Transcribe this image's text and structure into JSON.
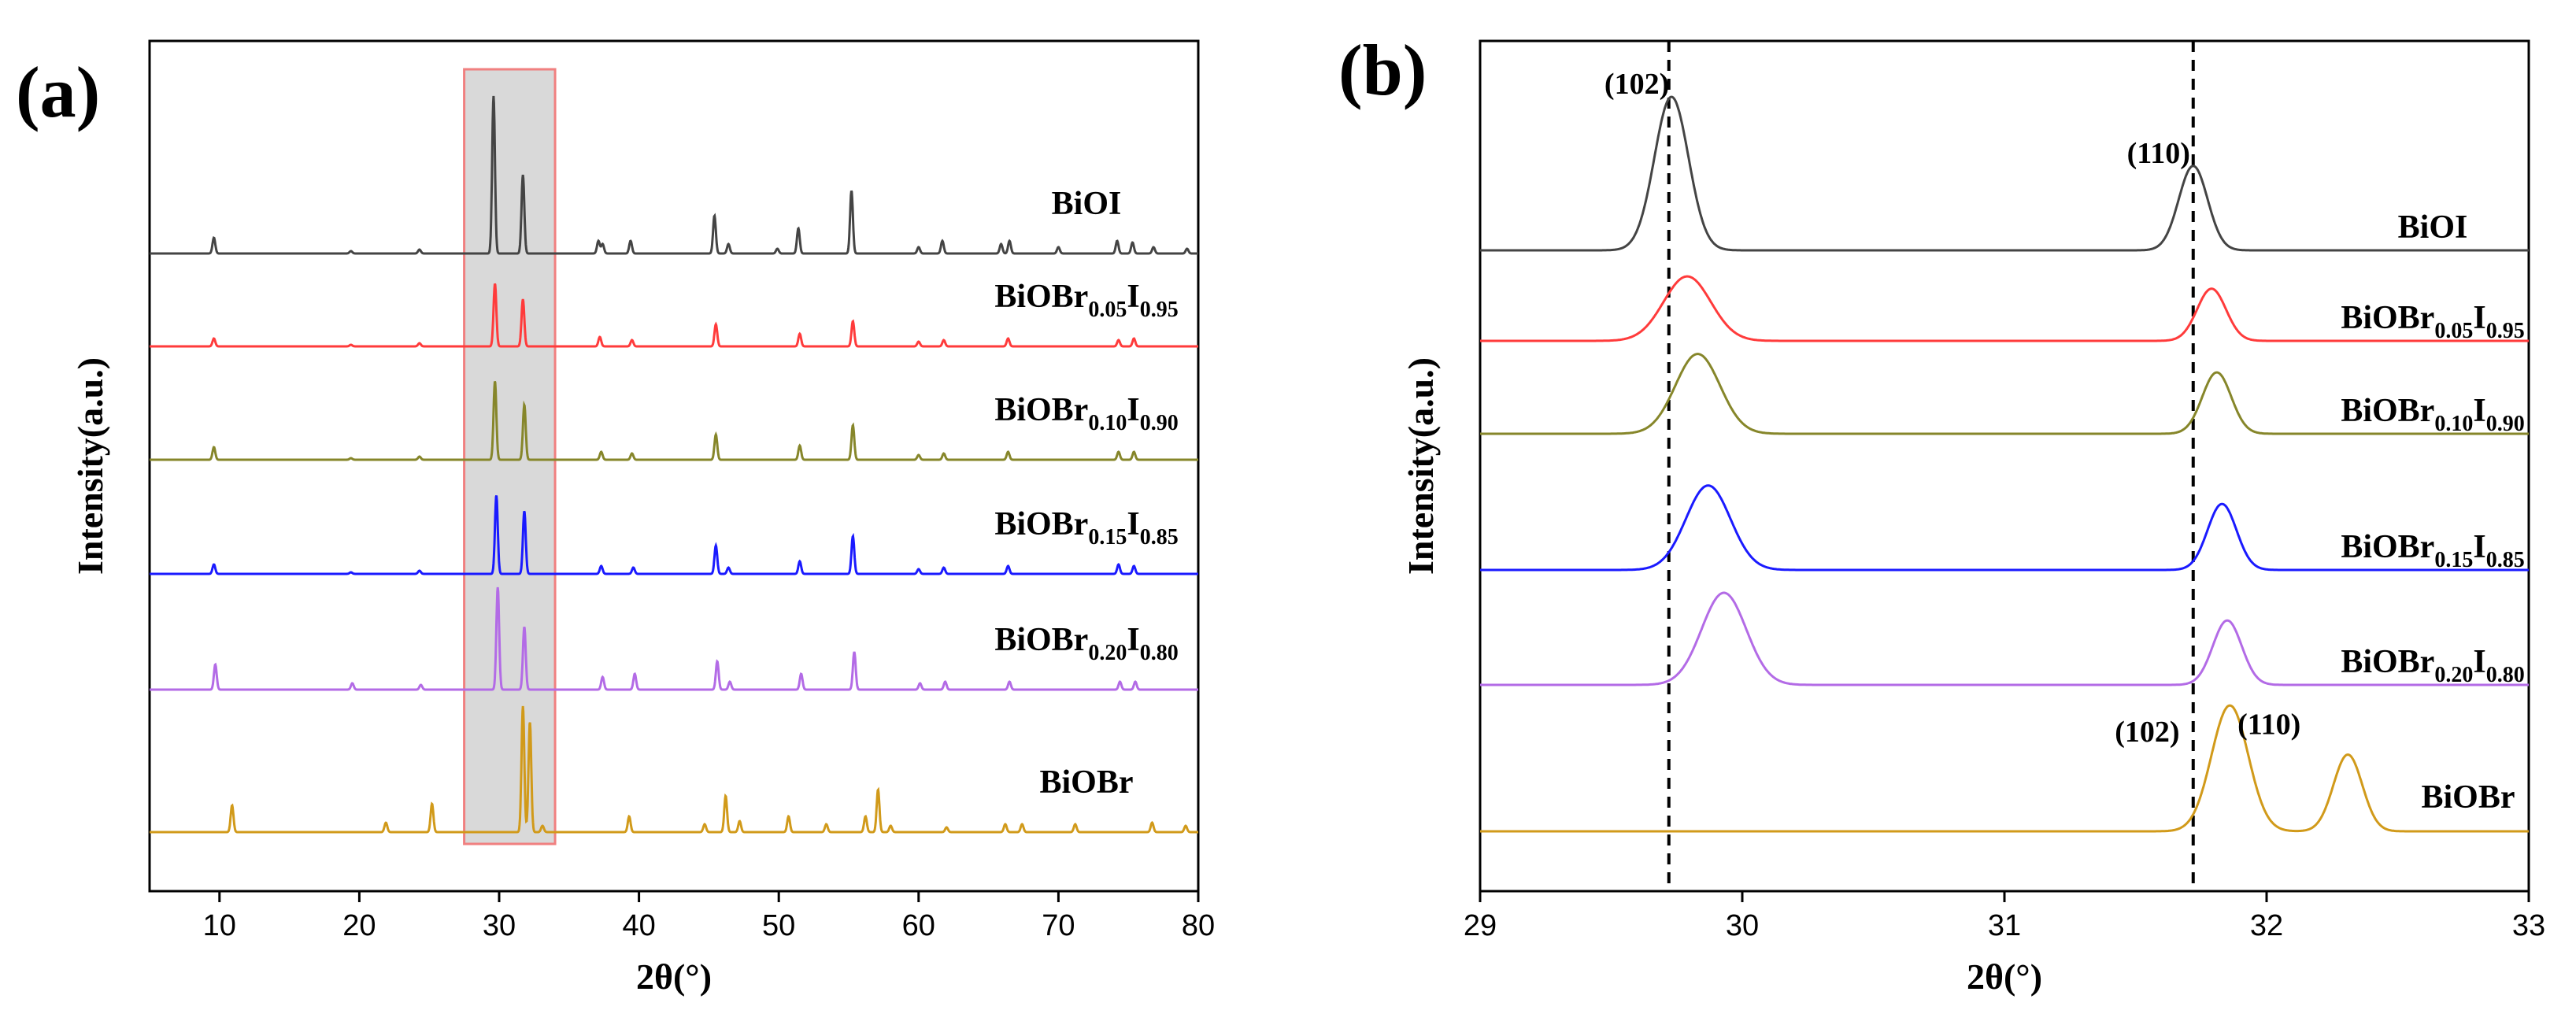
{
  "chart_data": [
    {
      "panel": "(a)",
      "type": "line",
      "xlabel": "2θ(°)",
      "ylabel": "Intensity(a.u.)",
      "xlim": [
        5,
        80
      ],
      "xticks": [
        10,
        20,
        30,
        40,
        50,
        60,
        70,
        80
      ],
      "yticks": "none",
      "highlight_region": [
        27.5,
        34
      ],
      "series": [
        {
          "id": "BiOI",
          "name": "BiOI",
          "base": "BiOI",
          "x_sub": "",
          "y_sub": "",
          "color": "#444444",
          "peaks": [
            [
              9.6,
              0.1
            ],
            [
              19.4,
              0.015
            ],
            [
              24.3,
              0.025
            ],
            [
              29.6,
              1.0
            ],
            [
              31.7,
              0.5
            ],
            [
              37.1,
              0.08
            ],
            [
              37.4,
              0.06
            ],
            [
              39.4,
              0.08
            ],
            [
              45.4,
              0.24
            ],
            [
              46.4,
              0.06
            ],
            [
              49.9,
              0.03
            ],
            [
              51.4,
              0.16
            ],
            [
              55.2,
              0.4
            ],
            [
              60.0,
              0.04
            ],
            [
              61.7,
              0.08
            ],
            [
              65.9,
              0.06
            ],
            [
              66.5,
              0.08
            ],
            [
              70.0,
              0.04
            ],
            [
              74.2,
              0.08
            ],
            [
              75.3,
              0.07
            ],
            [
              76.8,
              0.04
            ],
            [
              79.2,
              0.03
            ]
          ]
        },
        {
          "id": "BiOBr005",
          "name": "BiOBr0.05I0.95",
          "base": "BiOBr",
          "x_sub": "0.05",
          "y_sub": "0.95",
          "color": "#ff3b3b",
          "peaks": [
            [
              9.6,
              0.05
            ],
            [
              19.4,
              0.01
            ],
            [
              24.3,
              0.02
            ],
            [
              29.7,
              0.4
            ],
            [
              31.7,
              0.3
            ],
            [
              37.2,
              0.06
            ],
            [
              39.5,
              0.04
            ],
            [
              45.5,
              0.14
            ],
            [
              51.5,
              0.08
            ],
            [
              55.3,
              0.16
            ],
            [
              60.0,
              0.03
            ],
            [
              61.8,
              0.04
            ],
            [
              66.4,
              0.05
            ],
            [
              74.3,
              0.04
            ],
            [
              75.4,
              0.05
            ]
          ]
        },
        {
          "id": "BiOBr010",
          "name": "BiOBr0.10I0.90",
          "base": "BiOBr",
          "x_sub": "0.10",
          "y_sub": "0.90",
          "color": "#86862a",
          "peaks": [
            [
              9.6,
              0.08
            ],
            [
              19.4,
              0.01
            ],
            [
              24.3,
              0.02
            ],
            [
              29.7,
              0.5
            ],
            [
              31.8,
              0.35
            ],
            [
              37.3,
              0.05
            ],
            [
              39.5,
              0.04
            ],
            [
              45.5,
              0.16
            ],
            [
              51.5,
              0.09
            ],
            [
              55.3,
              0.22
            ],
            [
              60.0,
              0.03
            ],
            [
              61.8,
              0.04
            ],
            [
              66.4,
              0.05
            ],
            [
              74.3,
              0.05
            ],
            [
              75.4,
              0.05
            ]
          ]
        },
        {
          "id": "BiOBr015",
          "name": "BiOBr0.15I0.85",
          "base": "BiOBr",
          "x_sub": "0.15",
          "y_sub": "0.85",
          "color": "#1a1aff",
          "peaks": [
            [
              9.6,
              0.06
            ],
            [
              19.4,
              0.01
            ],
            [
              24.3,
              0.02
            ],
            [
              29.8,
              0.5
            ],
            [
              31.8,
              0.4
            ],
            [
              37.3,
              0.05
            ],
            [
              39.6,
              0.04
            ],
            [
              45.5,
              0.18
            ],
            [
              46.4,
              0.04
            ],
            [
              51.5,
              0.08
            ],
            [
              55.3,
              0.24
            ],
            [
              60.0,
              0.03
            ],
            [
              61.8,
              0.04
            ],
            [
              66.4,
              0.05
            ],
            [
              74.3,
              0.06
            ],
            [
              75.4,
              0.05
            ]
          ]
        },
        {
          "id": "BiOBr020",
          "name": "BiOBr0.20I0.80",
          "base": "BiOBr",
          "x_sub": "0.20",
          "y_sub": "0.80",
          "color": "#b36be6",
          "peaks": [
            [
              9.7,
              0.16
            ],
            [
              19.5,
              0.04
            ],
            [
              24.4,
              0.03
            ],
            [
              29.9,
              0.65
            ],
            [
              31.8,
              0.4
            ],
            [
              37.4,
              0.08
            ],
            [
              39.7,
              0.1
            ],
            [
              45.6,
              0.18
            ],
            [
              46.5,
              0.05
            ],
            [
              51.6,
              0.1
            ],
            [
              55.4,
              0.24
            ],
            [
              60.1,
              0.04
            ],
            [
              61.9,
              0.05
            ],
            [
              66.5,
              0.05
            ],
            [
              74.4,
              0.05
            ],
            [
              75.5,
              0.05
            ]
          ]
        },
        {
          "id": "BiOBr",
          "name": "BiOBr",
          "base": "BiOBr",
          "x_sub": "",
          "y_sub": "",
          "color": "#d19a1a",
          "peaks": [
            [
              10.9,
              0.17
            ],
            [
              21.9,
              0.06
            ],
            [
              25.2,
              0.18
            ],
            [
              31.7,
              0.8
            ],
            [
              32.2,
              0.7
            ],
            [
              33.1,
              0.04
            ],
            [
              39.3,
              0.1
            ],
            [
              44.7,
              0.05
            ],
            [
              46.2,
              0.23
            ],
            [
              47.2,
              0.07
            ],
            [
              50.7,
              0.1
            ],
            [
              53.4,
              0.05
            ],
            [
              56.2,
              0.1
            ],
            [
              57.1,
              0.27
            ],
            [
              58.0,
              0.04
            ],
            [
              62.0,
              0.03
            ],
            [
              66.2,
              0.05
            ],
            [
              67.4,
              0.05
            ],
            [
              71.2,
              0.05
            ],
            [
              76.7,
              0.06
            ],
            [
              79.1,
              0.04
            ]
          ]
        }
      ]
    },
    {
      "panel": "(b)",
      "type": "line",
      "xlabel": "2θ(°)",
      "ylabel": "Intensity(a.u.)",
      "xlim": [
        29,
        33
      ],
      "xticks": [
        29,
        30,
        31,
        32,
        33
      ],
      "yticks": "none",
      "reference_lines": [
        29.72,
        31.72
      ],
      "series": [
        {
          "id": "BiOI",
          "name": "BiOI",
          "base": "BiOI",
          "x_sub": "",
          "y_sub": "",
          "color": "#444444",
          "peaks": [
            [
              29.73,
              1.0,
              0.065
            ],
            [
              31.72,
              0.55,
              0.055
            ]
          ]
        },
        {
          "id": "BiOBr005",
          "name": "BiOBr0.05I0.95",
          "base": "BiOBr",
          "x_sub": "0.05",
          "y_sub": "0.95",
          "color": "#ff3b3b",
          "peaks": [
            [
              29.79,
              0.42,
              0.09
            ],
            [
              31.79,
              0.34,
              0.055
            ]
          ]
        },
        {
          "id": "BiOBr010",
          "name": "BiOBr0.10I0.90",
          "base": "BiOBr",
          "x_sub": "0.10",
          "y_sub": "0.90",
          "color": "#86862a",
          "peaks": [
            [
              29.83,
              0.52,
              0.085
            ],
            [
              31.81,
              0.4,
              0.055
            ]
          ]
        },
        {
          "id": "BiOBr015",
          "name": "BiOBr0.15I0.85",
          "base": "BiOBr",
          "x_sub": "0.15",
          "y_sub": "0.85",
          "color": "#1a1aff",
          "peaks": [
            [
              29.87,
              0.55,
              0.085
            ],
            [
              31.83,
              0.43,
              0.055
            ]
          ]
        },
        {
          "id": "BiOBr020",
          "name": "BiOBr0.20I0.80",
          "base": "BiOBr",
          "x_sub": "0.20",
          "y_sub": "0.80",
          "color": "#b36be6",
          "peaks": [
            [
              29.93,
              0.6,
              0.085
            ],
            [
              31.85,
              0.42,
              0.055
            ]
          ]
        },
        {
          "id": "BiOBr",
          "name": "BiOBr",
          "base": "BiOBr",
          "x_sub": "",
          "y_sub": "",
          "color": "#d19a1a",
          "peaks": [
            [
              31.86,
              0.82,
              0.07
            ],
            [
              32.31,
              0.5,
              0.055
            ]
          ]
        }
      ],
      "annotations": [
        {
          "text": "(102)",
          "series": "BiOI",
          "near_x": 29.73
        },
        {
          "text": "(110)",
          "series": "BiOI",
          "near_x": 31.72
        },
        {
          "text": "(102)",
          "series": "BiOBr",
          "near_x": 31.86
        },
        {
          "text": "(110)",
          "series": "BiOBr",
          "near_x": 32.31
        }
      ]
    }
  ]
}
